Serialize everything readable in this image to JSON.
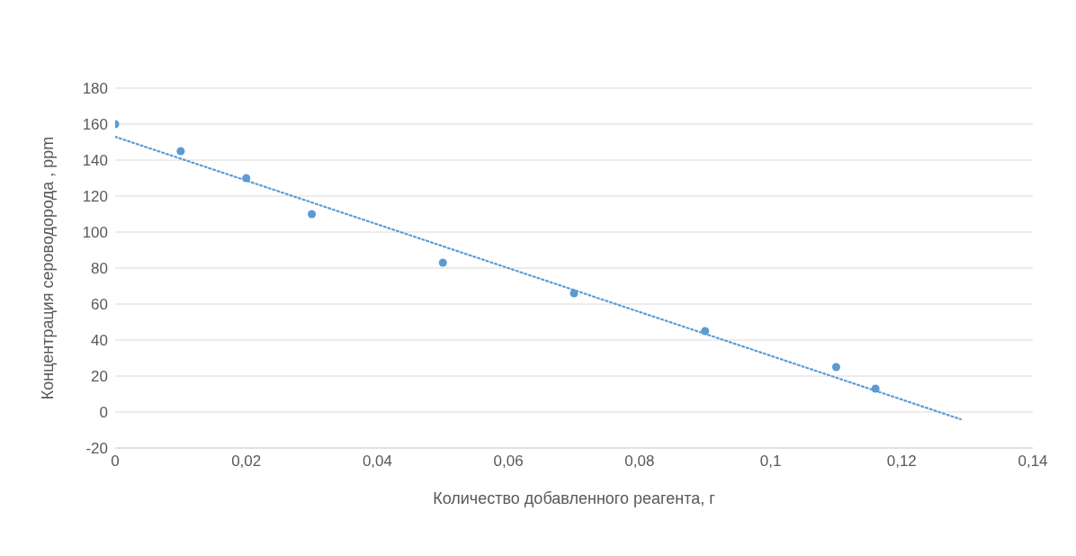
{
  "chart_data": {
    "type": "scatter",
    "xlabel": "Количество добавленного реагента, г",
    "ylabel": "Концентрация сероводорода , ppm",
    "xlim": [
      0,
      0.14
    ],
    "xticks": [
      0,
      {
        "value": 0.02,
        "label": "0,02"
      },
      {
        "value": 0.04,
        "label": "0,04"
      },
      {
        "value": 0.06,
        "label": "0,06"
      },
      {
        "value": 0.08,
        "label": "0,08"
      },
      {
        "value": 0.1,
        "label": "0,1"
      },
      {
        "value": 0.12,
        "label": "0,12"
      },
      {
        "value": 0.14,
        "label": "0,14"
      }
    ],
    "ylim": [
      -20,
      180
    ],
    "yticks": [
      -20,
      0,
      20,
      40,
      60,
      80,
      100,
      120,
      140,
      160,
      180
    ],
    "grid": "y",
    "marker": "circle",
    "series": [
      {
        "color": "#5b9bd5",
        "x": [
          0,
          0.01,
          0.02,
          0.03,
          0.05,
          0.07,
          0.09,
          0.11,
          0.116
        ],
        "values": [
          160,
          145,
          130,
          110,
          83,
          66,
          45,
          25,
          13
        ]
      },
      {
        "type": "line",
        "color": "#5b9bd5",
        "line_style": "dotted",
        "marker": "none",
        "x": [
          0,
          0.129
        ],
        "values": [
          153,
          -4
        ]
      }
    ]
  }
}
